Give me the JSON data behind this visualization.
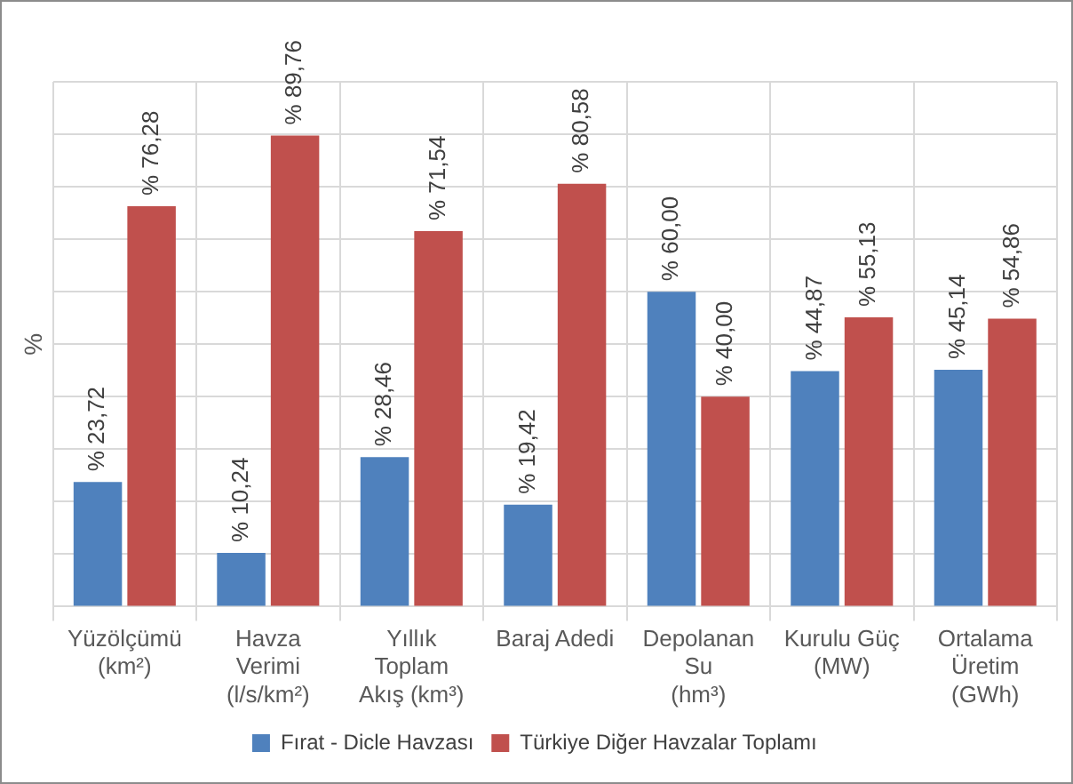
{
  "chart_data": {
    "type": "bar",
    "ylabel": "%",
    "categories": [
      "Yüzölçümü\n(km²)",
      "Havza\nVerimi\n(l/s/km²)",
      "Yıllık\nToplam\nAkış (km³)",
      "Baraj Adedi",
      "Depolanan\nSu\n(hm³)",
      "Kurulu Güç\n(MW)",
      "Ortalama\nÜretim\n(GWh)"
    ],
    "series": [
      {
        "name": "Fırat - Dicle Havzası",
        "color": "#4f81bd",
        "values": [
          23.72,
          10.24,
          28.46,
          19.42,
          60.0,
          44.87,
          45.14
        ],
        "value_labels": [
          "% 23,72",
          "% 10,24",
          "% 28,46",
          "% 19,42",
          "% 60,00",
          "% 44,87",
          "% 45,14"
        ]
      },
      {
        "name": "Türkiye Diğer Havzalar Toplamı",
        "color": "#c0504d",
        "values": [
          76.28,
          89.76,
          71.54,
          80.58,
          40.0,
          55.13,
          54.86
        ],
        "value_labels": [
          "% 76,28",
          "% 89,76",
          "% 71,54",
          "% 80,58",
          "% 40,00",
          "% 55,13",
          "% 54,86"
        ]
      }
    ],
    "tick_labels": "x",
    "grid": true,
    "legend": "bottom"
  }
}
